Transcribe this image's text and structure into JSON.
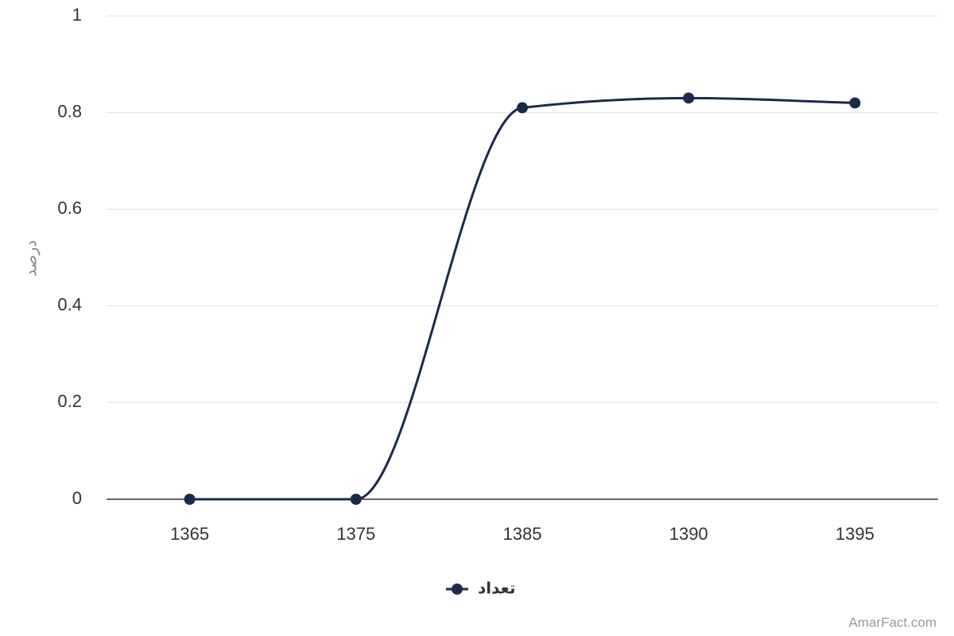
{
  "chart_data": {
    "type": "line",
    "y_label": "درصد",
    "categories": [
      "1365",
      "1375",
      "1385",
      "1390",
      "1395"
    ],
    "series": [
      {
        "name": "تعداد",
        "color": "#1c2a4a",
        "values": [
          0,
          0,
          0.81,
          0.83,
          0.82
        ]
      }
    ],
    "ylim": [
      0,
      1
    ],
    "yticks": [
      0,
      0.2,
      0.4,
      0.6,
      0.8,
      1
    ],
    "grid": true,
    "legend": "bottom",
    "credit": "AmarFact.com"
  }
}
